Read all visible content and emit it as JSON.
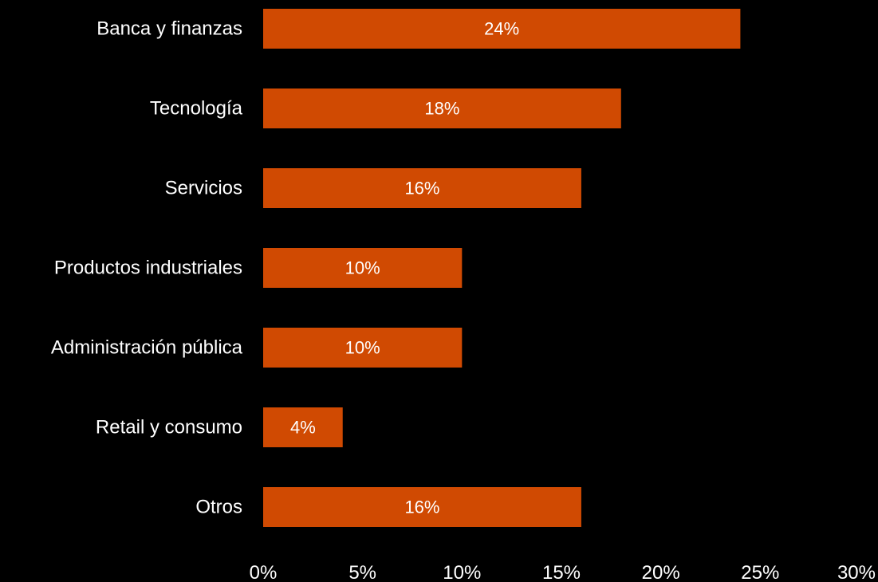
{
  "chart_data": {
    "type": "bar",
    "orientation": "horizontal",
    "categories": [
      "Banca y finanzas",
      "Tecnología",
      "Servicios",
      "Productos industriales",
      "Administración pública",
      "Retail y consumo",
      "Otros"
    ],
    "values": [
      24,
      18,
      16,
      10,
      10,
      4,
      16
    ],
    "data_labels": [
      "24%",
      "18%",
      "16%",
      "10%",
      "10%",
      "4%",
      "16%"
    ],
    "xlim": [
      0,
      30
    ],
    "x_ticks": [
      0,
      5,
      10,
      15,
      20,
      25,
      30
    ],
    "x_tick_labels": [
      "0%",
      "5%",
      "10%",
      "15%",
      "20%",
      "25%",
      "30%"
    ],
    "grid": false,
    "legend": "none",
    "colors": {
      "background": "#000000",
      "bar": "#D04A02",
      "text": "#FFFFFF"
    }
  }
}
